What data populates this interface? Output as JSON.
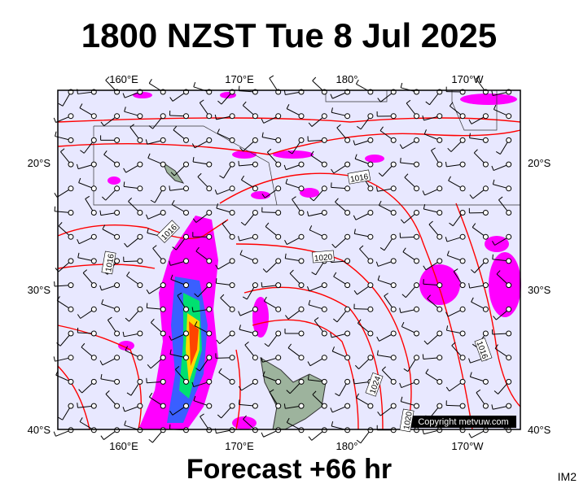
{
  "title": "1800 NZST Tue 8 Jul 2025",
  "footer": "Forecast +66 hr",
  "code": "IM2",
  "copyright": "Copyright metvuw.com",
  "map": {
    "top_labels": [
      "160°E",
      "170°E",
      "180°",
      "170°W"
    ],
    "bottom_labels": [
      "160°E",
      "170°E",
      "180°",
      "170°W"
    ],
    "left_labels": [
      "20°S",
      "30°S",
      "40°S"
    ],
    "right_labels": [
      "20°S",
      "30°S",
      "40°S"
    ],
    "isobar_labels": [
      "1016",
      "1016",
      "1016",
      "1020",
      "1024",
      "1016",
      "1020"
    ]
  }
}
